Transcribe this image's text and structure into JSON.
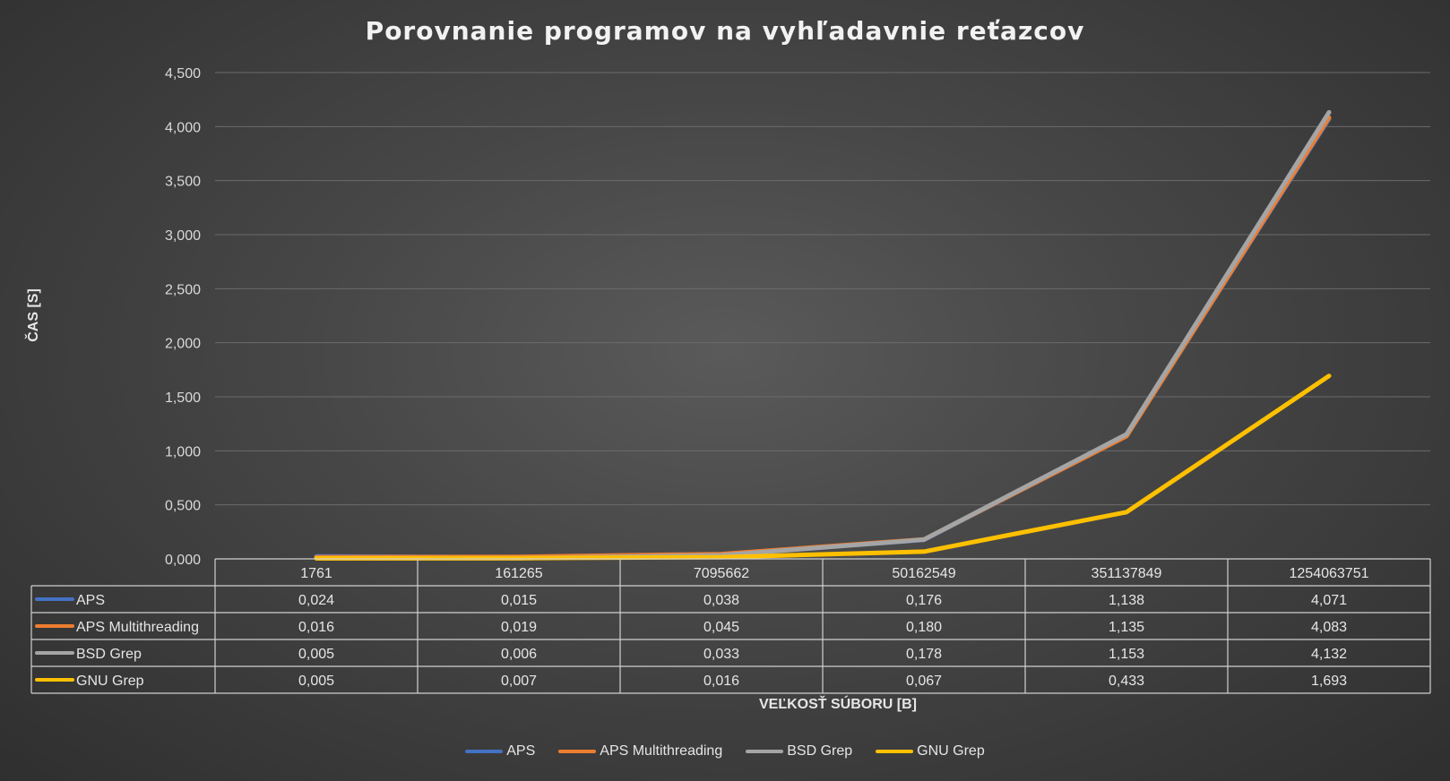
{
  "colors": {
    "APS": "#4472c4",
    "APS Multithreading": "#ed7d31",
    "BSD Grep": "#a5a5a5",
    "GNU Grep": "#ffc000"
  },
  "chart_data": {
    "type": "line",
    "title": "Porovnanie programov na vyhľadavnie reťazcov",
    "xlabel": "VEĽKOSŤ SÚBORU [B]",
    "ylabel": "ČAS [S]",
    "ylim": [
      0,
      4.5
    ],
    "yticks": [
      "0,000",
      "0,500",
      "1,000",
      "1,500",
      "2,000",
      "2,500",
      "3,000",
      "3,500",
      "4,000",
      "4,500"
    ],
    "grid": true,
    "legend": "bottom",
    "categories": [
      "1761",
      "161265",
      "7095662",
      "50162549",
      "351137849",
      "1254063751"
    ],
    "series": [
      {
        "name": "APS",
        "values": [
          0.024,
          0.015,
          0.038,
          0.176,
          1.138,
          4.071
        ],
        "labels": [
          "0,024",
          "0,015",
          "0,038",
          "0,176",
          "1,138",
          "4,071"
        ]
      },
      {
        "name": "APS Multithreading",
        "values": [
          0.016,
          0.019,
          0.045,
          0.18,
          1.135,
          4.083
        ],
        "labels": [
          "0,016",
          "0,019",
          "0,045",
          "0,180",
          "1,135",
          "4,083"
        ]
      },
      {
        "name": "BSD Grep",
        "values": [
          0.005,
          0.006,
          0.033,
          0.178,
          1.153,
          4.132
        ],
        "labels": [
          "0,005",
          "0,006",
          "0,033",
          "0,178",
          "1,153",
          "4,132"
        ]
      },
      {
        "name": "GNU Grep",
        "values": [
          0.005,
          0.007,
          0.016,
          0.067,
          0.433,
          1.693
        ],
        "labels": [
          "0,005",
          "0,007",
          "0,016",
          "0,067",
          "0,433",
          "1,693"
        ]
      }
    ]
  }
}
